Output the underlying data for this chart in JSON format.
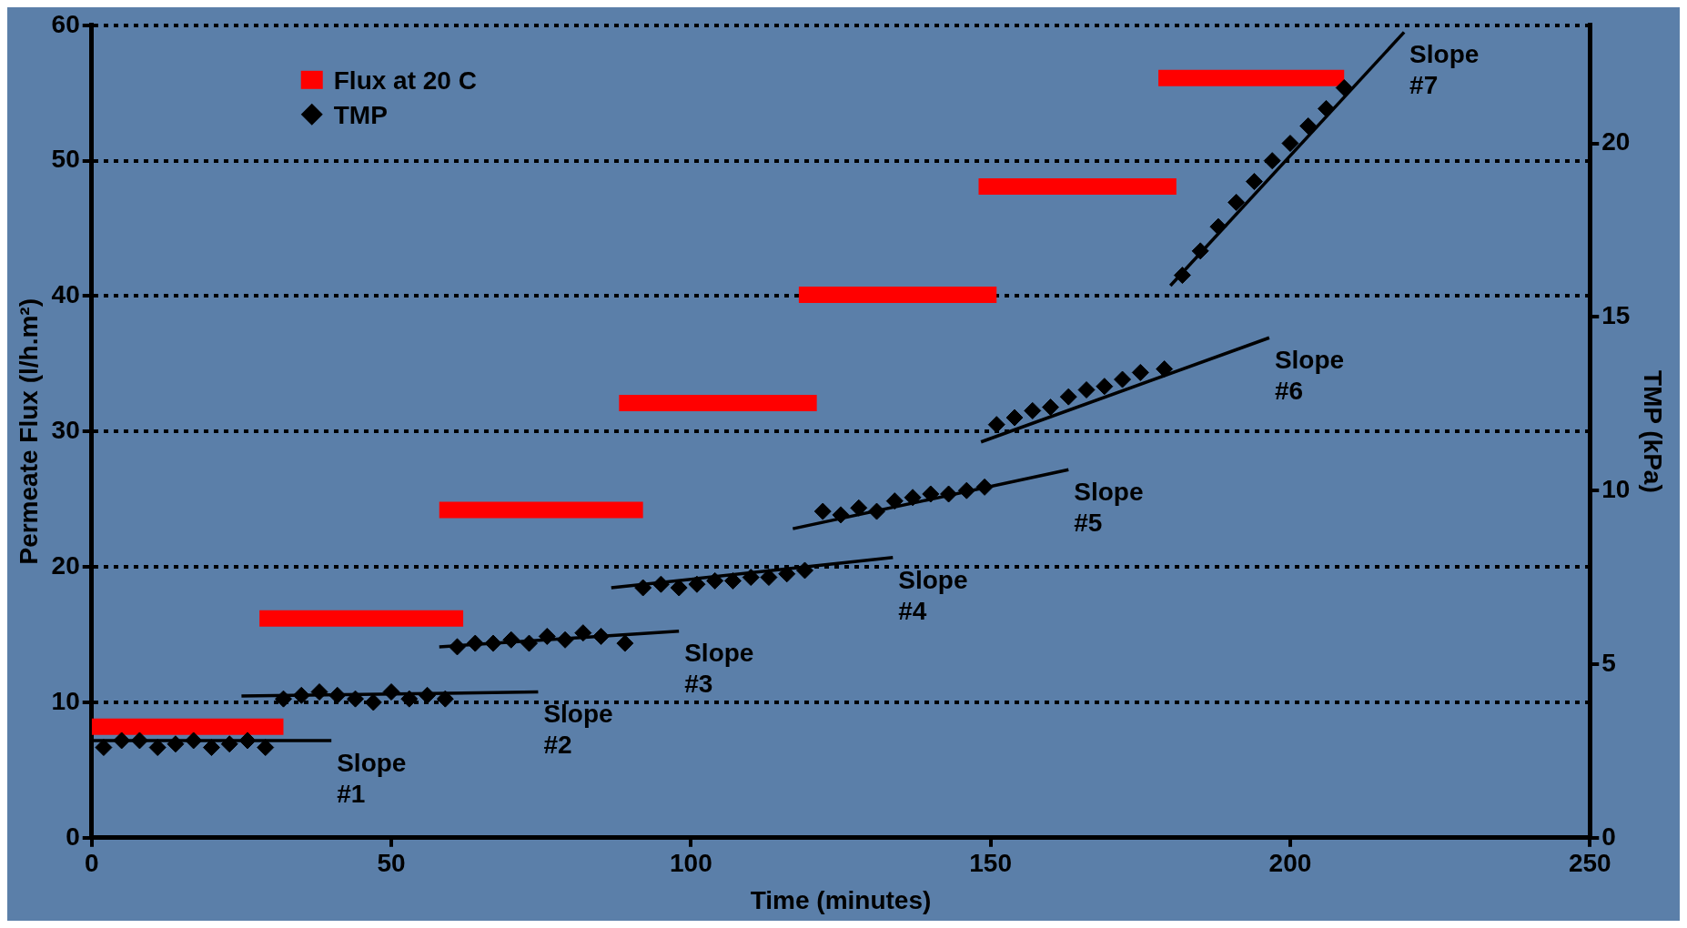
{
  "chart_data": {
    "type": "line",
    "xlabel": "Time (minutes)",
    "ylabel": "Permeate Flux (l/h.m²)",
    "y2label": "TMP (kPa)",
    "xlim": [
      0,
      250
    ],
    "xticks": [
      0,
      50,
      100,
      150,
      200,
      250
    ],
    "ylim": [
      0,
      60
    ],
    "yticks": [
      0,
      10,
      20,
      30,
      40,
      50,
      60
    ],
    "y2lim": [
      0,
      23.4
    ],
    "y2ticks": [
      0,
      5,
      10,
      15,
      20
    ],
    "grid": "y",
    "legend": "top left",
    "series": [
      {
        "name": "Flux at 20 C",
        "type": "line",
        "color": "#ff0000",
        "x": [
          0,
          32,
          null,
          28,
          62,
          null,
          58,
          92,
          null,
          88,
          121,
          null,
          118,
          151,
          null,
          148,
          181,
          null,
          178,
          209
        ],
        "values": [
          8.2,
          8.2,
          null,
          16.2,
          16.2,
          null,
          24.2,
          24.2,
          null,
          32.1,
          32.1,
          null,
          40.1,
          40.1,
          null,
          48.1,
          48.1,
          null,
          56.1,
          56.1
        ]
      },
      {
        "name": "TMP",
        "type": "scatter",
        "axis": "y2",
        "marker": "diamond",
        "color": "#000000",
        "x": [
          2,
          5,
          8,
          11,
          14,
          17,
          20,
          23,
          26,
          29,
          32,
          35,
          38,
          41,
          44,
          47,
          50,
          53,
          56,
          59,
          61,
          64,
          67,
          70,
          73,
          76,
          79,
          82,
          85,
          89,
          92,
          95,
          98,
          101,
          104,
          107,
          110,
          113,
          116,
          119,
          122,
          125,
          128,
          131,
          134,
          137,
          140,
          143,
          146,
          149,
          151,
          154,
          157,
          160,
          163,
          166,
          169,
          172,
          175,
          179,
          182,
          185,
          188,
          191,
          194,
          197,
          200,
          203,
          206,
          209
        ],
        "values": [
          2.6,
          2.8,
          2.8,
          2.6,
          2.7,
          2.8,
          2.6,
          2.7,
          2.8,
          2.6,
          4.0,
          4.1,
          4.2,
          4.1,
          4.0,
          3.9,
          4.2,
          4.0,
          4.1,
          4.0,
          5.5,
          5.6,
          5.6,
          5.7,
          5.6,
          5.8,
          5.7,
          5.9,
          5.8,
          5.6,
          7.2,
          7.3,
          7.2,
          7.3,
          7.4,
          7.4,
          7.5,
          7.5,
          7.6,
          7.7,
          9.4,
          9.3,
          9.5,
          9.4,
          9.7,
          9.8,
          9.9,
          9.9,
          10.0,
          10.1,
          11.9,
          12.1,
          12.3,
          12.4,
          12.7,
          12.9,
          13.0,
          13.2,
          13.4,
          13.5,
          16.2,
          16.9,
          17.6,
          18.3,
          18.9,
          19.5,
          20.0,
          20.5,
          21.0,
          21.6
        ]
      },
      {
        "type": "line",
        "axis": "y2",
        "color": "#000000",
        "x": [
          0,
          40
        ],
        "values": [
          2.8,
          2.8
        ]
      },
      {
        "type": "line",
        "axis": "y2",
        "color": "#000000",
        "x": [
          25,
          74.5
        ],
        "values": [
          4.08,
          4.2
        ]
      },
      {
        "type": "line",
        "axis": "y2",
        "color": "#000000",
        "x": [
          58,
          98
        ],
        "values": [
          5.5,
          5.95
        ]
      },
      {
        "type": "line",
        "axis": "y2",
        "color": "#000000",
        "x": [
          86.7,
          133.7
        ],
        "values": [
          7.2,
          8.07
        ]
      },
      {
        "type": "line",
        "axis": "y2",
        "color": "#000000",
        "x": [
          117,
          163
        ],
        "values": [
          8.9,
          10.6
        ]
      },
      {
        "type": "line",
        "axis": "y2",
        "color": "#000000",
        "x": [
          148.4,
          196.5
        ],
        "values": [
          11.4,
          14.4
        ]
      },
      {
        "type": "line",
        "axis": "y2",
        "color": "#000000",
        "x": [
          180,
          219
        ],
        "values": [
          15.9,
          23.2
        ]
      }
    ],
    "annotations": [
      "Slope #1",
      "Slope #2",
      "Slope #3",
      "Slope #4",
      "Slope #5",
      "Slope #6",
      "Slope #7"
    ]
  }
}
